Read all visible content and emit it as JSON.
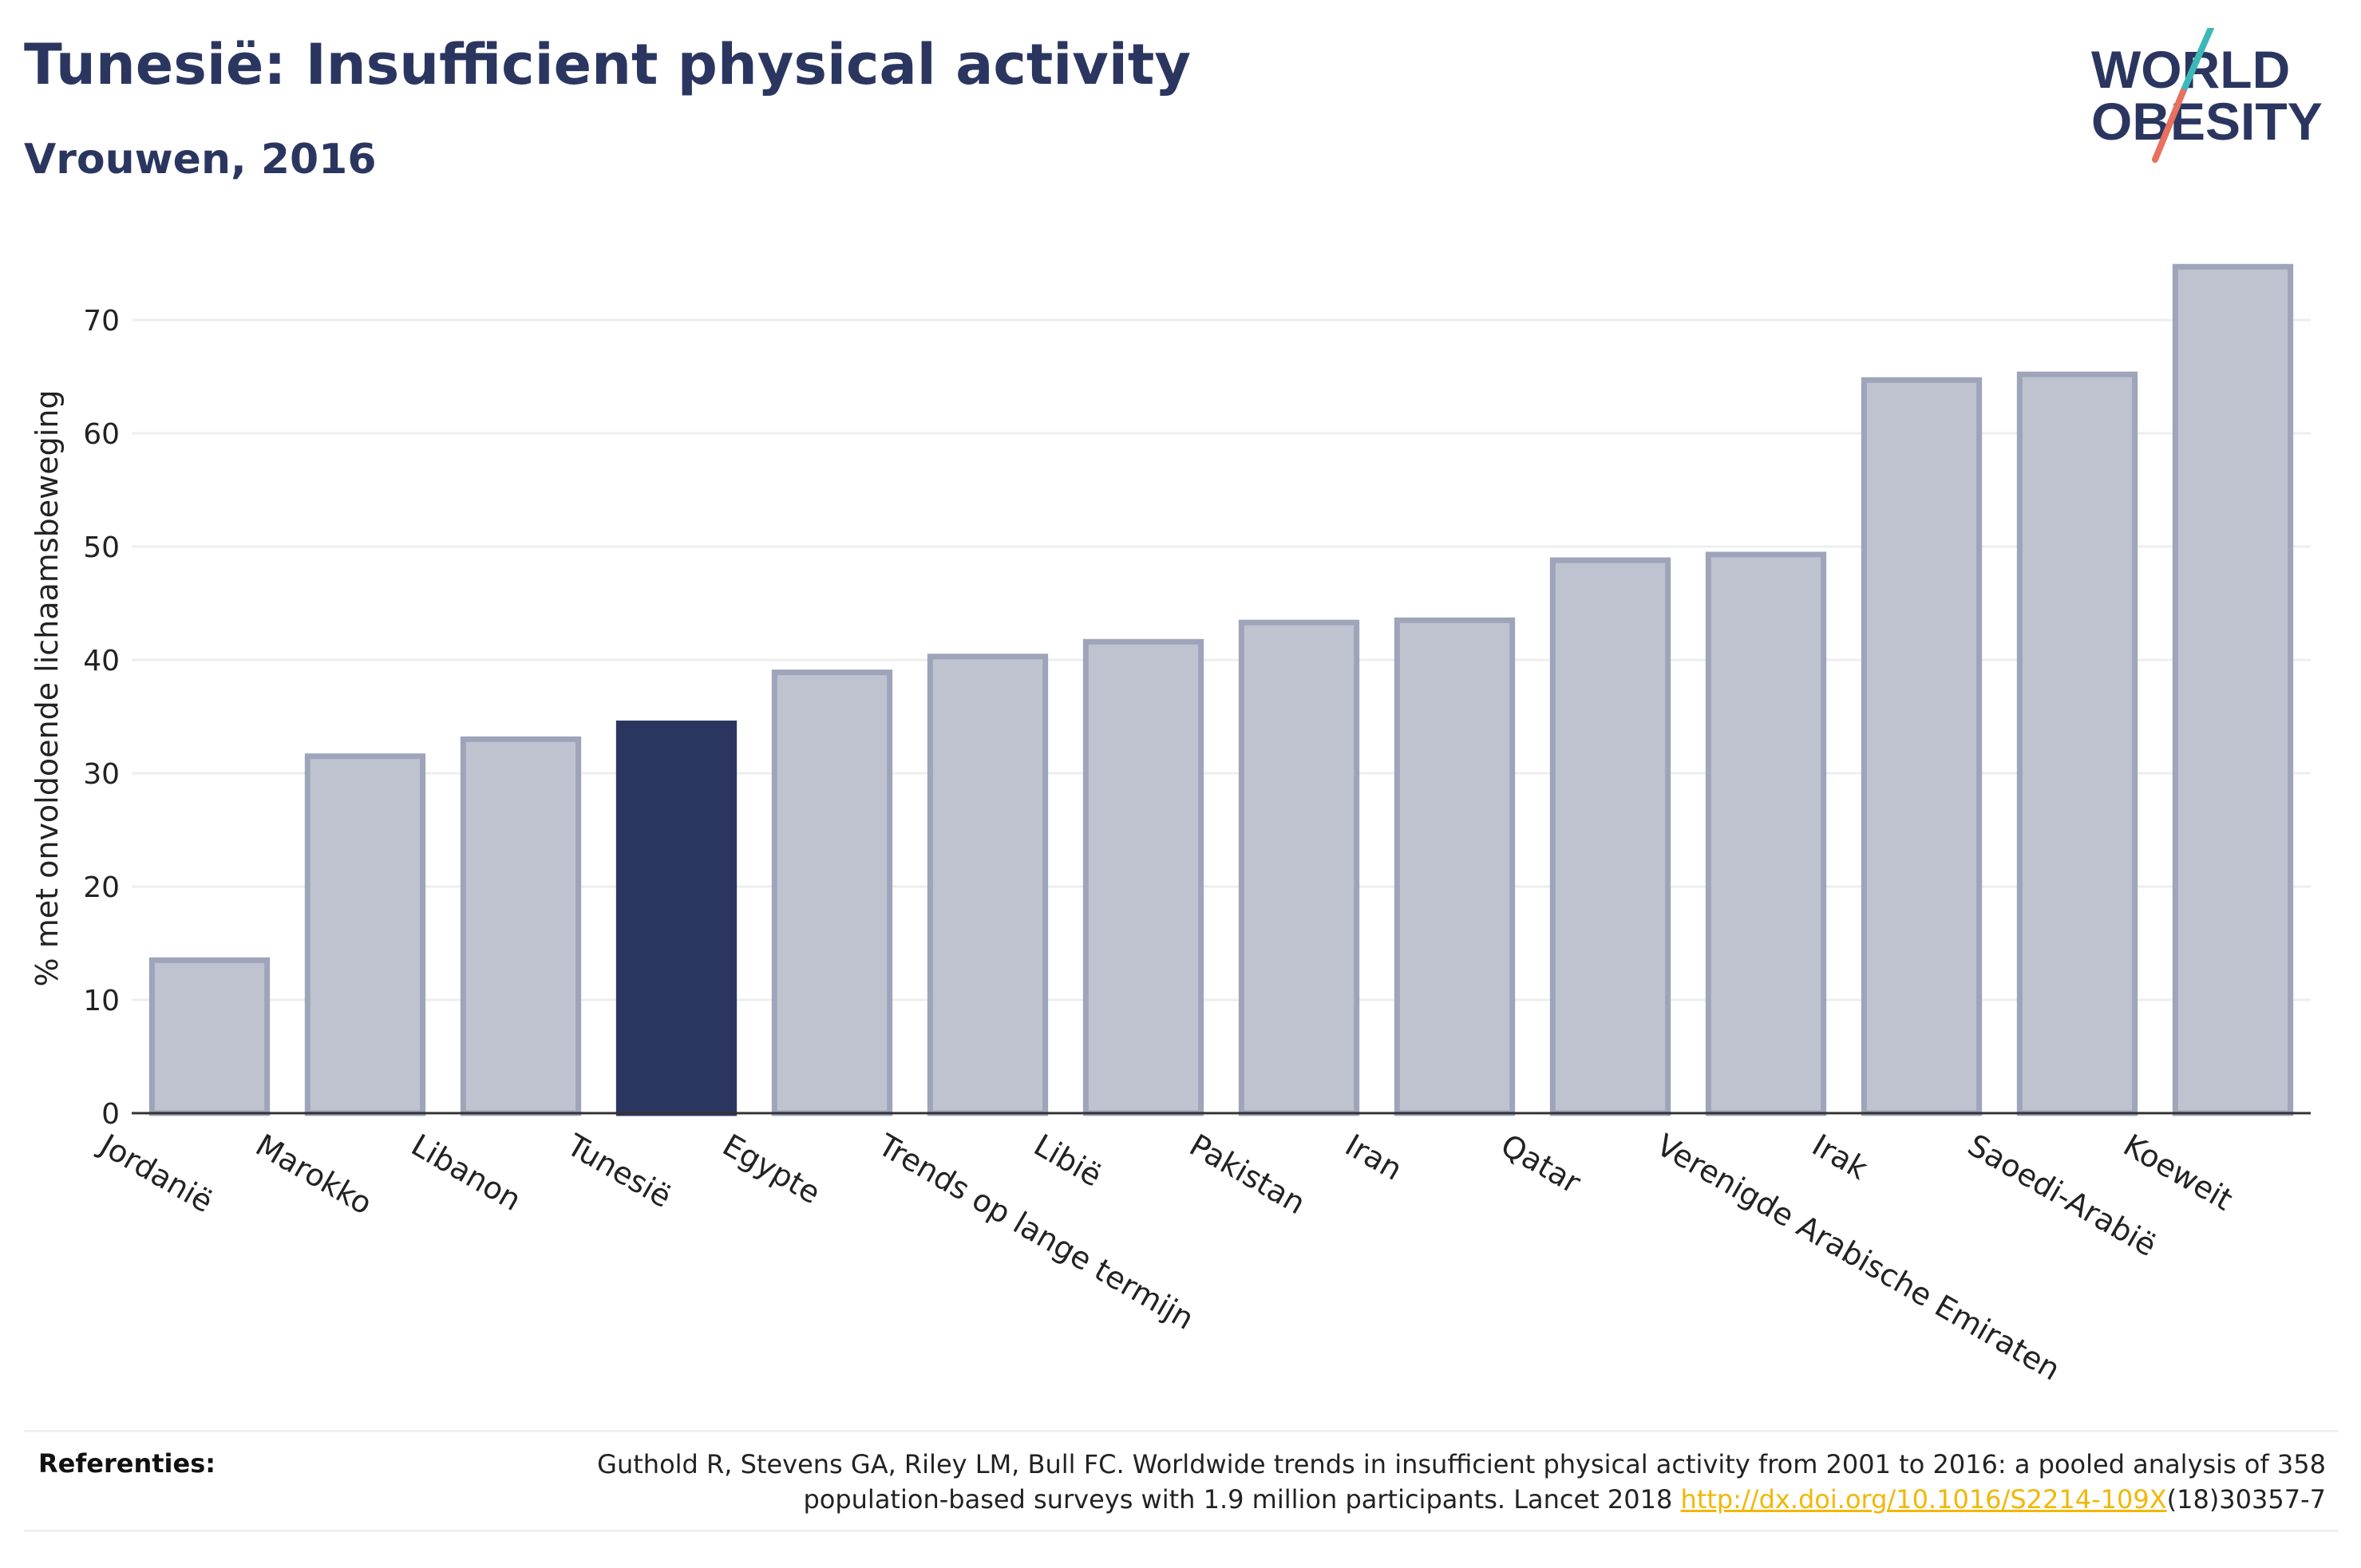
{
  "header": {
    "title": "Tunesië: Insufficient physical activity",
    "subtitle": "Vrouwen, 2016"
  },
  "logo": {
    "line1": "WORLD",
    "line2": "OBESITY"
  },
  "colors": {
    "highlight": "#2b3660",
    "bar_fill": "#bfc3d0",
    "bar_stroke": "#9ea4b9",
    "grid": "#eceef2",
    "axis": "#333333",
    "logo_teal": "#3db8b8",
    "logo_coral": "#e8705f",
    "link": "#f2b705"
  },
  "chart_data": {
    "type": "bar",
    "title": "Tunesië: Insufficient physical activity",
    "subtitle": "Vrouwen, 2016",
    "ylabel": "% met onvoldoende lichaamsbeweging",
    "xlabel": "",
    "ylim": [
      0,
      75
    ],
    "yticks": [
      0,
      10,
      20,
      30,
      40,
      50,
      60,
      70
    ],
    "grid": true,
    "highlight": "Tunesië",
    "categories": [
      "Jordanië",
      "Marokko",
      "Libanon",
      "Tunesië",
      "Egypte",
      "Trends op lange termijn",
      "Libië",
      "Pakistan",
      "Iran",
      "Qatar",
      "Verenigde Arabische Emiraten",
      "Irak",
      "Saoedi-Arabië",
      "Koeweit"
    ],
    "values": [
      13.5,
      31.5,
      33.0,
      34.4,
      38.9,
      40.3,
      41.6,
      43.3,
      43.5,
      48.8,
      49.3,
      64.7,
      65.2,
      74.7
    ]
  },
  "references": {
    "label": "Referenties:",
    "text_before": "Guthold R, Stevens GA, Riley LM, Bull FC. Worldwide trends in insufficient physical activity from 2001 to 2016: a pooled analysis of 358 population-based surveys with 1.9 million participants. Lancet 2018 ",
    "link": "http://dx.doi.org/10.1016/S2214-109X",
    "text_after": "(18)30357-7"
  }
}
